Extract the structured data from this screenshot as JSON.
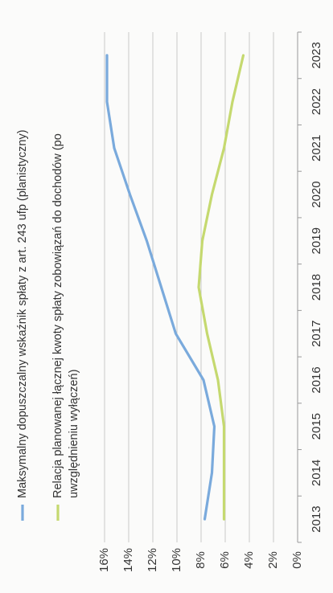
{
  "chart_data": {
    "type": "line",
    "orientation": "rotated-90-clockwise",
    "title": "",
    "xlabel": "",
    "ylabel": "",
    "categories": [
      "2013",
      "2014",
      "2015",
      "2016",
      "2017",
      "2018",
      "2019",
      "2020",
      "2021",
      "2022",
      "2023"
    ],
    "ylim": [
      0,
      16
    ],
    "yticks": [
      "0%",
      "2%",
      "4%",
      "6%",
      "8%",
      "10%",
      "12%",
      "14%",
      "16%"
    ],
    "grid": true,
    "legend_position": "top",
    "series": [
      {
        "name": "Maksymalny dopuszczalny wskaźnik spłaty z art. 243 ufp (planistyczny)",
        "color": "#7aaadc",
        "values": [
          7.7,
          7.1,
          6.9,
          7.8,
          10.1,
          11.3,
          12.5,
          13.9,
          15.2,
          15.8,
          15.8
        ]
      },
      {
        "name": "Relacja planowanej łącznej kwoty spłaty zobowiązań do dochodów (po uwzględnieniu wyłączeń)",
        "color": "#c5d96f",
        "values": [
          6.1,
          6.1,
          6.1,
          6.6,
          7.5,
          8.2,
          7.9,
          7.1,
          6.1,
          5.4,
          4.5
        ]
      }
    ]
  }
}
